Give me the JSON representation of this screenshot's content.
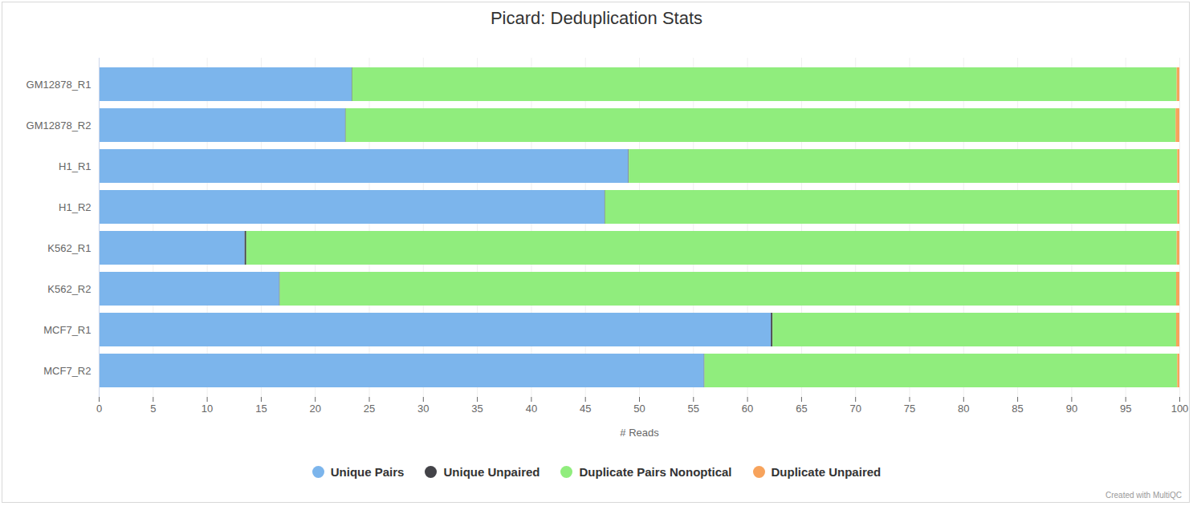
{
  "chart_data": {
    "type": "bar",
    "title": "Picard: Deduplication Stats",
    "orientation": "horizontal",
    "stacked": true,
    "grid": true,
    "legend": "bottom",
    "xlabel": "# Reads",
    "caption": "Created with MultiQC",
    "categories": [
      "GM12878_R1",
      "GM12878_R2",
      "H1_R1",
      "H1_R2",
      "K562_R1",
      "K562_R2",
      "MCF7_R1",
      "MCF7_R2"
    ],
    "xlim": [
      0,
      100
    ],
    "xticks": [
      0,
      5,
      10,
      15,
      20,
      25,
      30,
      35,
      40,
      45,
      50,
      55,
      60,
      65,
      70,
      75,
      80,
      85,
      90,
      95,
      100
    ],
    "series": [
      {
        "name": "Unique Pairs",
        "color": "#7cb5ec",
        "values": [
          23.4,
          22.8,
          49.0,
          46.8,
          13.5,
          16.7,
          62.2,
          56.0
        ]
      },
      {
        "name": "Unique Unpaired",
        "color": "#434348",
        "values": [
          0.05,
          0.05,
          0.05,
          0.05,
          0.15,
          0.05,
          0.15,
          0.05
        ]
      },
      {
        "name": "Duplicate Pairs Nonoptical",
        "color": "#90ed7d",
        "values": [
          76.3,
          76.8,
          50.75,
          52.95,
          86.1,
          82.95,
          37.35,
          43.75
        ]
      },
      {
        "name": "Duplicate Unpaired",
        "color": "#f7a35c",
        "values": [
          0.25,
          0.35,
          0.2,
          0.2,
          0.25,
          0.3,
          0.3,
          0.2
        ]
      }
    ]
  }
}
